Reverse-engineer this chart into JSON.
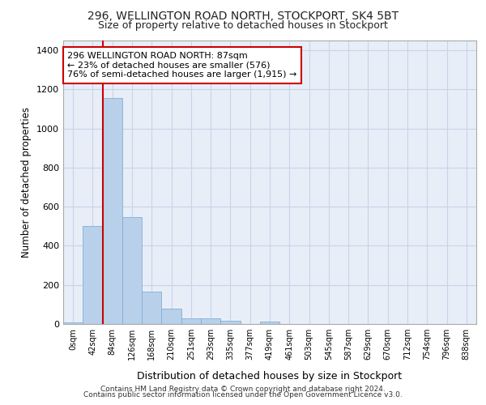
{
  "title1": "296, WELLINGTON ROAD NORTH, STOCKPORT, SK4 5BT",
  "title2": "Size of property relative to detached houses in Stockport",
  "xlabel": "Distribution of detached houses by size in Stockport",
  "ylabel": "Number of detached properties",
  "bar_labels": [
    "0sqm",
    "42sqm",
    "84sqm",
    "126sqm",
    "168sqm",
    "210sqm",
    "251sqm",
    "293sqm",
    "335sqm",
    "377sqm",
    "419sqm",
    "461sqm",
    "503sqm",
    "545sqm",
    "587sqm",
    "629sqm",
    "670sqm",
    "712sqm",
    "754sqm",
    "796sqm",
    "838sqm"
  ],
  "bar_values": [
    10,
    500,
    1155,
    545,
    165,
    80,
    30,
    27,
    15,
    0,
    14,
    0,
    0,
    0,
    0,
    0,
    0,
    0,
    0,
    0,
    0
  ],
  "bar_color": "#b8d0ea",
  "bar_edge_color": "#85afd4",
  "annotation_text": "296 WELLINGTON ROAD NORTH: 87sqm\n← 23% of detached houses are smaller (576)\n76% of semi-detached houses are larger (1,915) →",
  "annotation_box_color": "#ffffff",
  "annotation_box_edge": "#cc0000",
  "vline_color": "#cc0000",
  "grid_color": "#c8d4e8",
  "background_color": "#e8eef8",
  "ylim": [
    0,
    1450
  ],
  "yticks": [
    0,
    200,
    400,
    600,
    800,
    1000,
    1200,
    1400
  ],
  "footer1": "Contains HM Land Registry data © Crown copyright and database right 2024.",
  "footer2": "Contains public sector information licensed under the Open Government Licence v3.0."
}
